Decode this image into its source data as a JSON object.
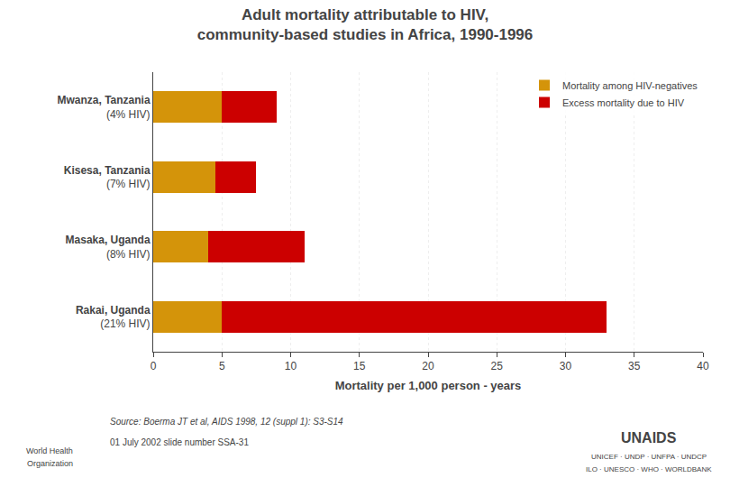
{
  "chart_data": {
    "type": "bar",
    "orientation": "horizontal",
    "stacked": true,
    "title": "Adult mortality attributable to HIV,\ncommunity-based studies in Africa, 1990-1996",
    "categories": [
      "Mwanza, Tanzania\n(4% HIV)",
      "Kisesa, Tanzania\n(7% HIV)",
      "Masaka, Uganda\n(8% HIV)",
      "Rakai, Uganda\n(21% HIV)"
    ],
    "series": [
      {
        "name": "Mortality among HIV-negatives",
        "color": "#d4940a",
        "values": [
          5.0,
          4.5,
          4.0,
          5.0
        ]
      },
      {
        "name": "Excess mortality due to HIV",
        "color": "#cc0000",
        "values": [
          4.0,
          3.0,
          7.0,
          28.0
        ]
      }
    ],
    "xlabel": "Mortality per 1,000 person - years",
    "xlim": [
      0,
      40
    ],
    "xticks": [
      0,
      5,
      10,
      15,
      20,
      25,
      30,
      35,
      40
    ],
    "grid": true,
    "legend": "upper right",
    "annotations": [
      "Source: Boerma JT et al, AIDS 1998, 12 (suppl 1): S3-S14",
      "01 July 2002 slide number SSA-31",
      "World Health",
      "Organization",
      "UNAIDS",
      "UNICEF · UNDP · UNFPA · UNDCP",
      "ILO · UNESCO · WHO · WORLDBANK"
    ]
  }
}
